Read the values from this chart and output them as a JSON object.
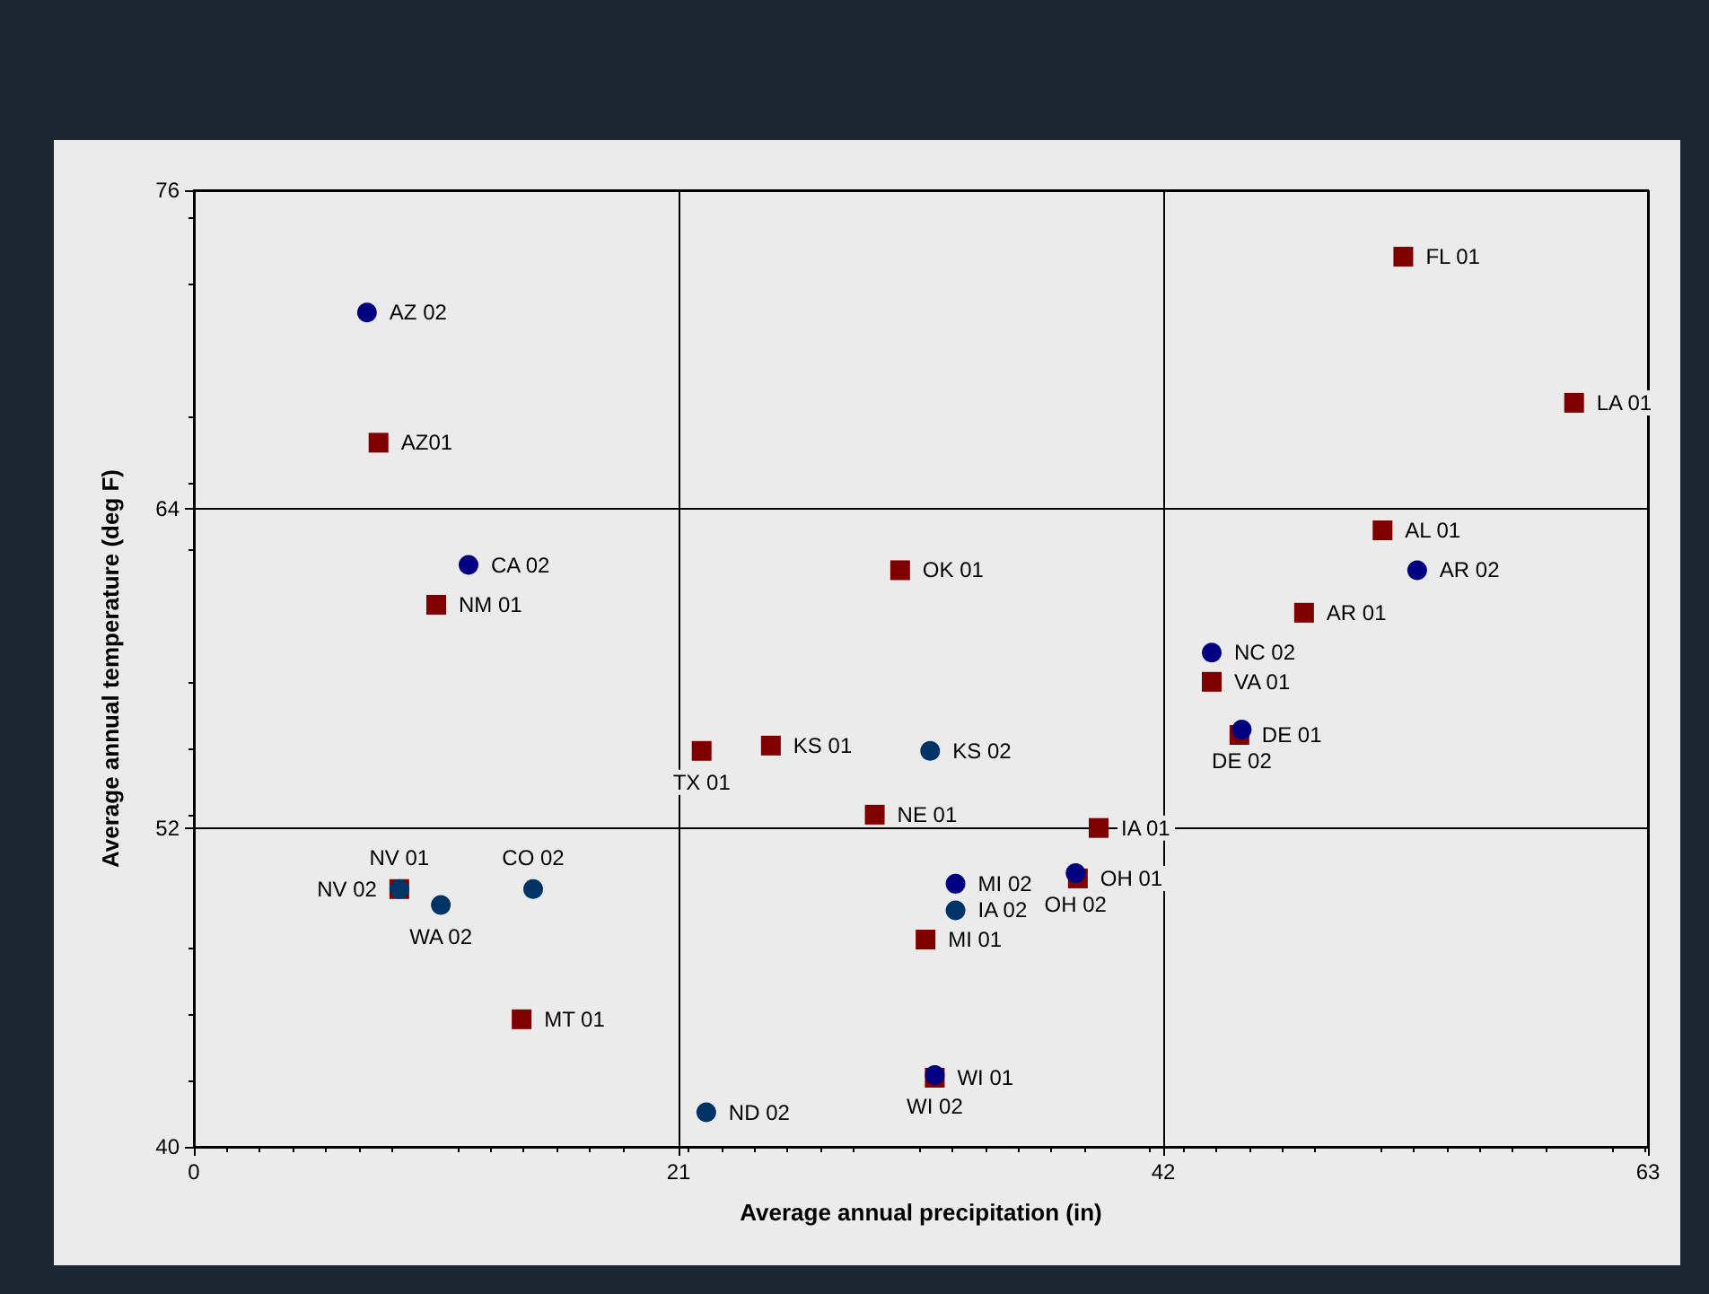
{
  "chart_data": {
    "type": "scatter",
    "xlabel": "Average annual precipitation (in)",
    "ylabel": "Average annual temperature (deg F)",
    "xlim": [
      0,
      63
    ],
    "xticks": [
      0,
      21,
      42,
      63
    ],
    "ylim": [
      40,
      76
    ],
    "yticks": [
      40,
      52,
      64,
      76
    ],
    "grid": true,
    "series": [
      {
        "color": "#800000",
        "marker": "square",
        "x": [
          8.0,
          10.5,
          14.2,
          22.0,
          25.0,
          30.6,
          29.5,
          31.7,
          32.1,
          39.2,
          38.3,
          52.4,
          59.8,
          51.5,
          48.1,
          44.1,
          45.3,
          8.9
        ],
        "values": [
          66.5,
          60.4,
          44.8,
          54.9,
          55.1,
          61.7,
          52.5,
          47.8,
          42.6,
          52.0,
          50.1,
          73.5,
          68.0,
          63.2,
          60.1,
          57.5,
          55.5,
          49.7
        ],
        "value_labels": [
          "AZ01",
          "NM 01",
          "MT 01",
          "TX 01",
          "KS 01",
          "OK 01",
          "NE 01",
          "MI 01",
          "WI 01",
          "IA 01",
          "OH 01",
          "FL 01",
          "LA 01",
          "AL 01",
          "AR 01",
          "VA 01",
          "DE 01",
          "NV 01"
        ]
      },
      {
        "color": "#000080",
        "marker": "circle",
        "x": [
          7.5,
          11.9,
          33.0,
          38.2,
          32.1,
          53.0,
          44.1,
          45.4
        ],
        "values": [
          71.4,
          61.9,
          49.9,
          50.3,
          42.7,
          61.7,
          58.6,
          55.7
        ],
        "value_labels": [
          "AZ 02",
          "CA 02",
          "MI 02",
          "OH 02",
          "WI 02",
          "AR 02",
          "NC 02",
          "DE 02"
        ]
      },
      {
        "color": "#003366",
        "marker": "circle",
        "x": [
          8.9,
          10.7,
          14.7,
          22.2,
          31.9,
          33.0
        ],
        "values": [
          49.7,
          49.1,
          49.7,
          41.3,
          54.9,
          48.9
        ],
        "value_labels": [
          "NV 02",
          "WA 02",
          "CO 02",
          "ND 02",
          "KS 02",
          "IA 02"
        ]
      }
    ]
  }
}
